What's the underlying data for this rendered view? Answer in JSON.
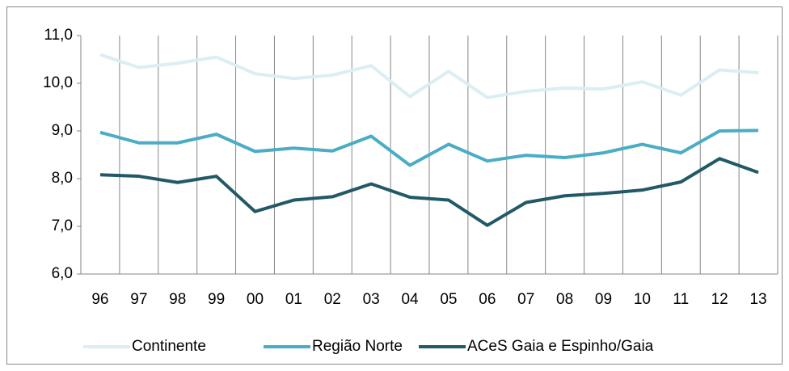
{
  "chart_data": {
    "type": "line",
    "categories": [
      "96",
      "97",
      "98",
      "99",
      "00",
      "01",
      "02",
      "03",
      "04",
      "05",
      "06",
      "07",
      "08",
      "09",
      "10",
      "11",
      "12",
      "13"
    ],
    "series": [
      {
        "name": "Continente",
        "color": "#dbeef4",
        "values": [
          10.6,
          10.33,
          10.42,
          10.55,
          10.2,
          10.1,
          10.17,
          10.37,
          9.72,
          10.25,
          9.7,
          9.83,
          9.9,
          9.88,
          10.03,
          9.75,
          10.28,
          10.22
        ]
      },
      {
        "name": "Região Norte",
        "color": "#4bacc6",
        "values": [
          8.97,
          8.75,
          8.75,
          8.93,
          8.57,
          8.64,
          8.58,
          8.89,
          8.28,
          8.72,
          8.37,
          8.49,
          8.44,
          8.54,
          8.72,
          8.54,
          9.0,
          9.01
        ]
      },
      {
        "name": "ACeS Gaia e Espinho/Gaia",
        "color": "#215967",
        "values": [
          8.08,
          8.05,
          7.92,
          8.05,
          7.31,
          7.55,
          7.62,
          7.89,
          7.61,
          7.55,
          7.02,
          7.5,
          7.64,
          7.69,
          7.76,
          7.93,
          8.42,
          8.13
        ]
      }
    ],
    "ylim": [
      6,
      11
    ],
    "yticks": [
      {
        "value": 6,
        "label": "6,0"
      },
      {
        "value": 7,
        "label": "7,0"
      },
      {
        "value": 8,
        "label": "8,0"
      },
      {
        "value": 9,
        "label": "9,0"
      },
      {
        "value": 10,
        "label": "10,0"
      },
      {
        "value": 11,
        "label": "11,0"
      }
    ],
    "legend": "bottom"
  }
}
